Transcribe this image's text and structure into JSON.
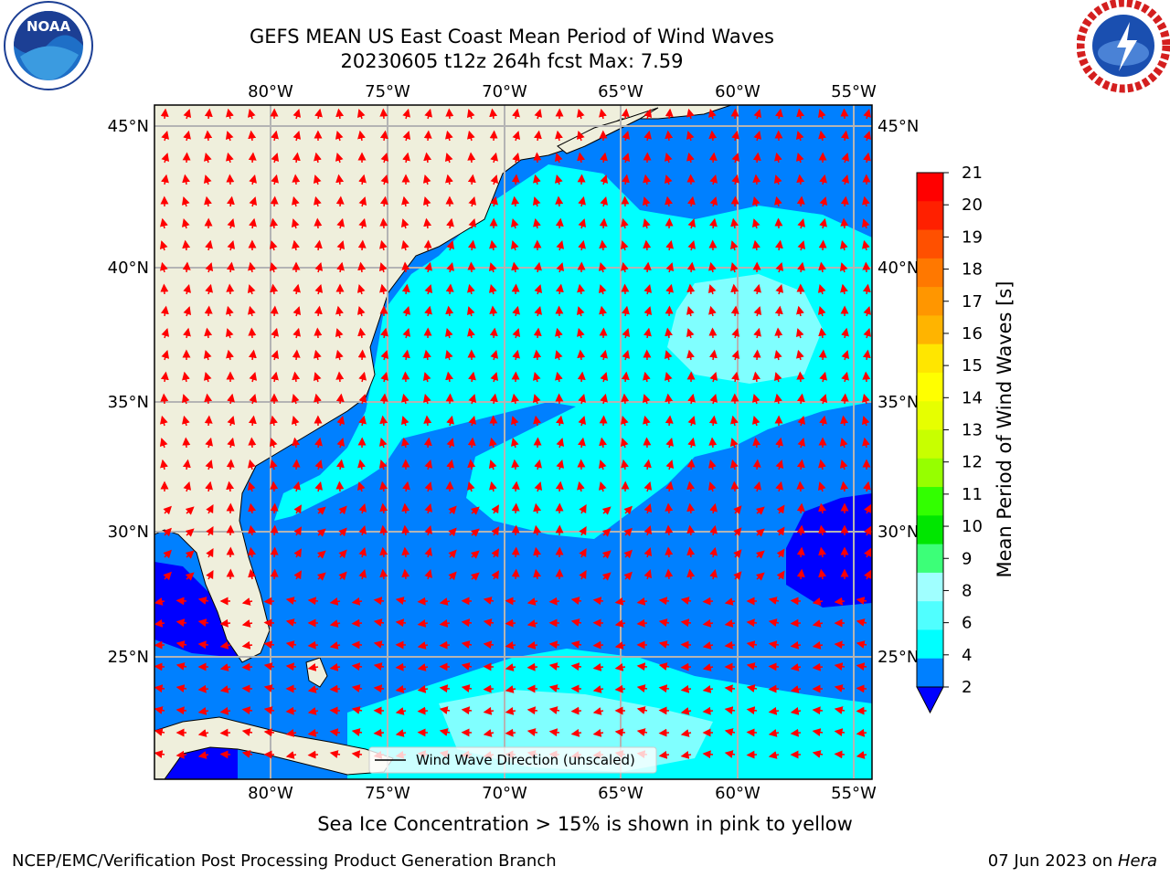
{
  "title_line1": "GEFS MEAN US East Coast Mean Period of Wind Waves",
  "title_line2": "20230605 t12z 264h fcst   Max: 7.59",
  "sea_ice_note": "Sea Ice Concentration > 15% is shown in pink to yellow",
  "footer_left": "NCEP/EMC/Verification Post Processing Product Generation Branch",
  "footer_date": "07 Jun 2023 on ",
  "footer_host": "Hera",
  "logos": {
    "left": "NOAA",
    "right": "NATIONAL WEATHER SERVICE"
  },
  "map": {
    "lon_ticks": [
      "80°W",
      "75°W",
      "70°W",
      "65°W",
      "60°W",
      "55°W"
    ],
    "lat_ticks": [
      "45°N",
      "40°N",
      "35°N",
      "30°N",
      "25°N"
    ],
    "legend_label": "Wind Wave Direction (unscaled)",
    "colors": {
      "land": "#efefdc",
      "ocean_2": "#0080ff",
      "ocean_4": "#00ffff",
      "ocean_6": "#80ffff",
      "ocean_low": "#0000ff",
      "arrow": "#ff0000"
    }
  },
  "colorbar": {
    "label": "Mean Period of Wind Waves [s]",
    "ticks": [
      "21",
      "20",
      "19",
      "18",
      "17",
      "16",
      "15",
      "14",
      "13",
      "12",
      "11",
      "10",
      "9",
      "8",
      "6",
      "4",
      "2"
    ],
    "colors": [
      "#ff0000",
      "#ff2000",
      "#ff5000",
      "#ff7800",
      "#ff9600",
      "#ffb400",
      "#ffe600",
      "#ffff00",
      "#e6ff00",
      "#c8ff00",
      "#96ff00",
      "#32ff00",
      "#00e600",
      "#3cff78",
      "#a0ffff",
      "#50ffff",
      "#00ffff",
      "#0080ff"
    ],
    "extend_color": "#0000ff"
  }
}
